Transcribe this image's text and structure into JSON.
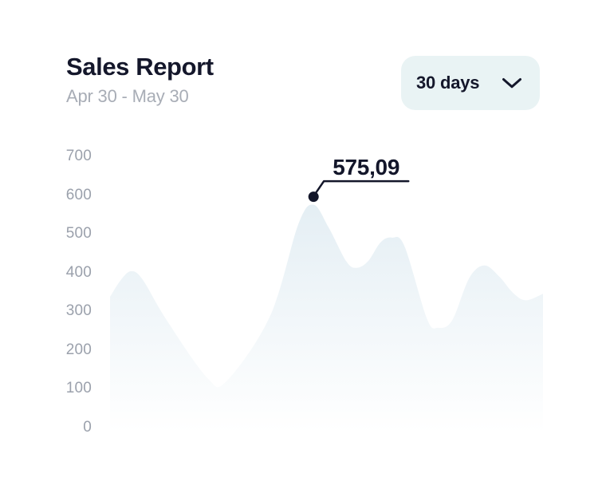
{
  "header": {
    "title": "Sales Report",
    "date_range": "Apr 30 - May 30",
    "period_selector": {
      "label": "30 days",
      "icon": "chevron-down-icon"
    }
  },
  "colors": {
    "text_dark": "#14172b",
    "text_gray": "#a8adb6",
    "axis_gray": "#9ba1ac",
    "button_bg": "#e9f3f4",
    "area_fill": "#e2edf3",
    "annotation_ink": "#13162a",
    "background": "#ffffff"
  },
  "chart_data": {
    "type": "area",
    "title": "Sales Report",
    "x_range_label": "Apr 30 - May 30",
    "xlabel": "",
    "ylabel": "",
    "ylim": [
      0,
      700
    ],
    "yticks": [
      0,
      100,
      200,
      300,
      400,
      500,
      600,
      700
    ],
    "grid": false,
    "legend": false,
    "series_name": "Sales",
    "points": [
      {
        "x": 0.0,
        "y": 337
      },
      {
        "x": 0.024,
        "y": 379
      },
      {
        "x": 0.048,
        "y": 403
      },
      {
        "x": 0.075,
        "y": 382
      },
      {
        "x": 0.13,
        "y": 278
      },
      {
        "x": 0.225,
        "y": 127
      },
      {
        "x": 0.27,
        "y": 120
      },
      {
        "x": 0.37,
        "y": 288
      },
      {
        "x": 0.435,
        "y": 525
      },
      {
        "x": 0.47,
        "y": 575.09
      },
      {
        "x": 0.505,
        "y": 516
      },
      {
        "x": 0.546,
        "y": 428
      },
      {
        "x": 0.57,
        "y": 412
      },
      {
        "x": 0.596,
        "y": 429
      },
      {
        "x": 0.625,
        "y": 478
      },
      {
        "x": 0.651,
        "y": 490
      },
      {
        "x": 0.68,
        "y": 468
      },
      {
        "x": 0.732,
        "y": 280
      },
      {
        "x": 0.758,
        "y": 257
      },
      {
        "x": 0.79,
        "y": 276
      },
      {
        "x": 0.83,
        "y": 386
      },
      {
        "x": 0.865,
        "y": 418
      },
      {
        "x": 0.9,
        "y": 388
      },
      {
        "x": 0.93,
        "y": 348
      },
      {
        "x": 0.96,
        "y": 328
      },
      {
        "x": 1.0,
        "y": 345
      }
    ],
    "highlight": {
      "point_index": 9,
      "label": "575,09",
      "value": 575.09
    }
  }
}
